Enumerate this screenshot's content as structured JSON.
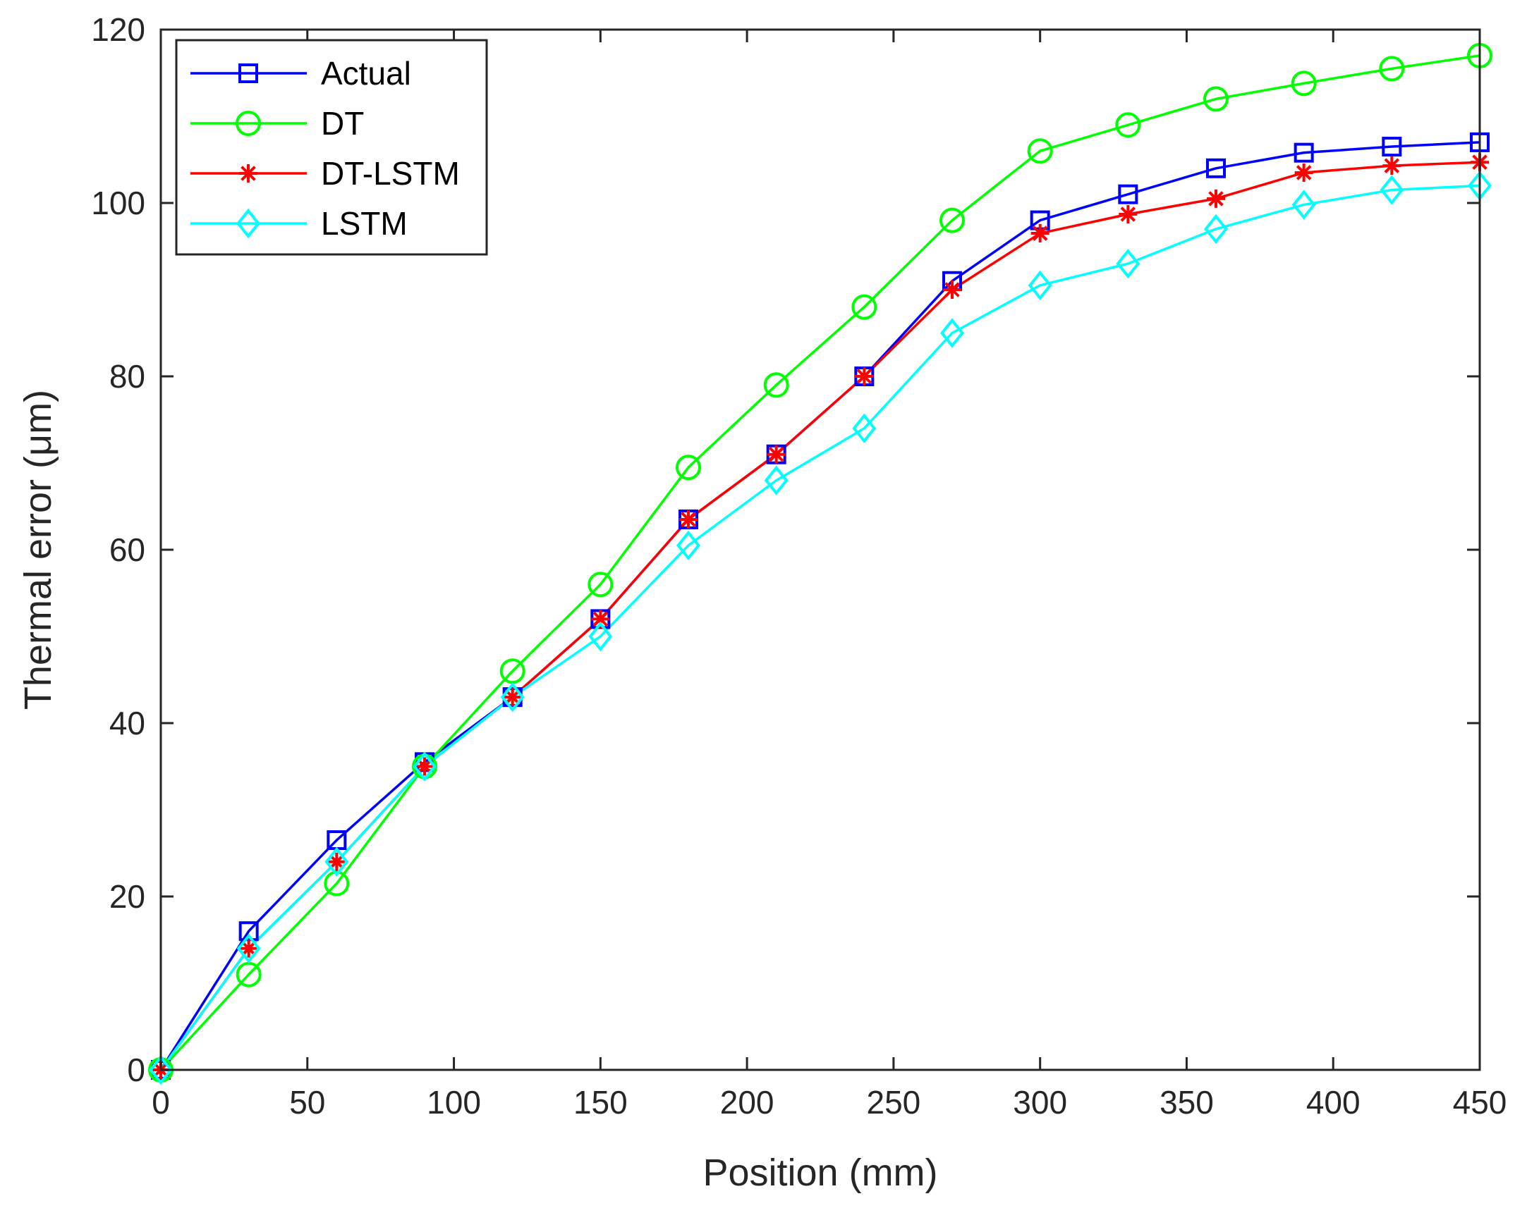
{
  "chart_data": {
    "type": "line",
    "title": "",
    "xlabel": "Position (mm)",
    "ylabel": "Thermal error (μm)",
    "xlim": [
      0,
      450
    ],
    "ylim": [
      0,
      120
    ],
    "xticks": [
      0,
      50,
      100,
      150,
      200,
      250,
      300,
      350,
      400,
      450
    ],
    "yticks": [
      0,
      20,
      40,
      60,
      80,
      100,
      120
    ],
    "grid": false,
    "legend_position": "top-left",
    "x": [
      0,
      30,
      60,
      90,
      120,
      150,
      180,
      210,
      240,
      270,
      300,
      330,
      360,
      390,
      420,
      450
    ],
    "series": [
      {
        "name": "Actual",
        "color": "#0000ff",
        "marker": "square",
        "values": [
          0,
          16,
          26.5,
          35.5,
          43,
          52,
          63.5,
          71,
          80,
          91,
          98,
          101,
          104,
          105.8,
          106.5,
          107
        ]
      },
      {
        "name": "DT",
        "color": "#00ff00",
        "marker": "circle",
        "values": [
          0,
          11,
          21.5,
          35,
          46,
          56,
          69.5,
          79,
          88,
          98,
          106,
          109,
          112,
          113.8,
          115.5,
          117
        ]
      },
      {
        "name": "DT-LSTM",
        "color": "#ff0000",
        "marker": "asterisk",
        "values": [
          0,
          14,
          24,
          35,
          43,
          52,
          63.5,
          71,
          80,
          90,
          96.5,
          98.7,
          100.5,
          103.5,
          104.3,
          104.7
        ]
      },
      {
        "name": "LSTM",
        "color": "#00ffff",
        "marker": "diamond",
        "values": [
          0,
          14,
          24,
          35,
          43,
          50,
          60.5,
          68,
          74,
          85,
          90.5,
          93,
          97,
          99.8,
          101.5,
          102
        ]
      }
    ]
  }
}
